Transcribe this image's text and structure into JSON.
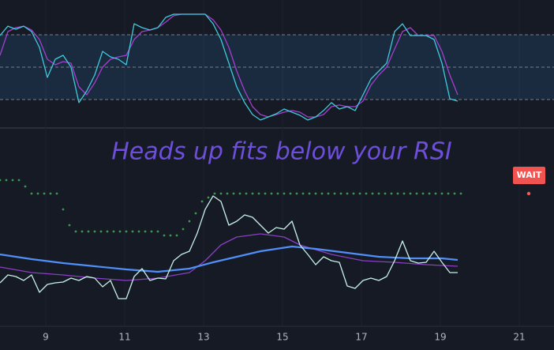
{
  "chart_data": [
    {
      "type": "line",
      "xlim": [
        7.84,
        21.88
      ],
      "ylim": [
        -4.9,
        112.2
      ],
      "hlines": [
        80,
        50,
        20
      ],
      "band": true,
      "series": [
        {
          "style": "line",
          "color": "#a53fcf",
          "x": [
            7.84,
            8.04,
            8.24,
            8.44,
            8.64,
            8.84,
            9.04,
            9.24,
            9.44,
            9.64,
            9.84,
            10.04,
            10.24,
            10.44,
            10.64,
            10.84,
            11.04,
            11.24,
            11.44,
            11.64,
            11.84,
            12.04,
            12.24,
            12.44,
            12.64,
            12.84,
            13.04,
            13.24,
            13.44,
            13.64,
            13.84,
            14.04,
            14.24,
            14.44,
            14.64,
            14.84,
            15.04,
            15.24,
            15.44,
            15.64,
            15.84,
            16.04,
            16.24,
            16.44,
            16.64,
            16.84,
            17.04,
            17.24,
            17.44,
            17.64,
            17.84,
            18.04,
            18.24,
            18.44,
            18.64,
            18.84,
            19.04,
            19.24,
            19.44
          ],
          "values": [
            61,
            82.9,
            86.6,
            88,
            84.4,
            75.6,
            57.3,
            52.2,
            55.1,
            53.7,
            31.7,
            24.4,
            35.4,
            50,
            57.3,
            59.5,
            61,
            75.6,
            82.9,
            84.4,
            86.6,
            91.7,
            97.6,
            99,
            99,
            99,
            99,
            93.9,
            84.4,
            68.3,
            46.3,
            28,
            13.4,
            6.1,
            3.9,
            6.1,
            8.3,
            9.8,
            8.3,
            3.9,
            3.9,
            6.1,
            13.4,
            14.9,
            13.4,
            13.4,
            18.5,
            33.2,
            42.7,
            50,
            66.8,
            82.9,
            86.6,
            79.3,
            79.3,
            79.3,
            64.6,
            42.7,
            24.4
          ]
        },
        {
          "style": "line",
          "color": "#3fcbdc",
          "x": [
            7.84,
            8.04,
            8.24,
            8.44,
            8.64,
            8.84,
            9.04,
            9.24,
            9.44,
            9.64,
            9.84,
            10.04,
            10.24,
            10.44,
            10.64,
            10.84,
            11.04,
            11.24,
            11.44,
            11.64,
            11.84,
            12.04,
            12.24,
            12.44,
            12.64,
            12.84,
            13.04,
            13.24,
            13.44,
            13.64,
            13.84,
            14.04,
            14.24,
            14.44,
            14.64,
            14.84,
            15.04,
            15.24,
            15.44,
            15.64,
            15.84,
            16.04,
            16.24,
            16.44,
            16.64,
            16.84,
            17.04,
            17.24,
            17.44,
            17.64,
            17.84,
            18.04,
            18.24,
            18.44,
            18.64,
            18.84,
            19.04,
            19.24,
            19.44
          ],
          "values": [
            79.3,
            88,
            85.1,
            88,
            82.9,
            68.3,
            40.5,
            57.3,
            61,
            50,
            17.1,
            28,
            42.7,
            64.6,
            59.5,
            57.3,
            52.2,
            90.2,
            86.6,
            84.4,
            86.6,
            96.1,
            99,
            99,
            99,
            99,
            99,
            90.2,
            75.6,
            53.7,
            31.7,
            17.1,
            6.1,
            1,
            3.9,
            6.8,
            11.2,
            8.3,
            5.4,
            1,
            3.9,
            9.8,
            17.1,
            11.2,
            13.4,
            9.8,
            24.4,
            39,
            46.3,
            53.7,
            82.9,
            90.2,
            79.3,
            79.3,
            79.3,
            75.6,
            53.7,
            20.7,
            18.5
          ]
        }
      ]
    },
    {
      "type": "line",
      "title": "Heads up fits below your RSI",
      "annotation": "WAIT",
      "xlim": [
        7.84,
        21.88
      ],
      "ylim": [
        0,
        123.5
      ],
      "xticks": [
        9,
        11,
        13,
        15,
        17,
        19,
        21
      ],
      "series": [
        {
          "style": "dots",
          "color": "#3a9a4c",
          "x": [
            7.84,
            8,
            8.16,
            8.32,
            8.48,
            8.64,
            8.8,
            8.96,
            9.12,
            9.28,
            9.44,
            9.6,
            9.76,
            9.92,
            10.08,
            10.24,
            10.4,
            10.56,
            10.72,
            10.88,
            11.04,
            11.2,
            11.36,
            11.52,
            11.68,
            11.84,
            12,
            12.16,
            12.32,
            12.48,
            12.64,
            12.8,
            12.96,
            13.12,
            13.28,
            13.44,
            13.6,
            13.76,
            13.92,
            14.08,
            14.24,
            14.4,
            14.56,
            14.72,
            14.88,
            15.04,
            15.2,
            15.36,
            15.52,
            15.68,
            15.84,
            16,
            16.16,
            16.32,
            16.48,
            16.64,
            16.8,
            16.96,
            17.12,
            17.28,
            17.44,
            17.6,
            17.76,
            17.92,
            18.08,
            18.24,
            18.4,
            18.56,
            18.72,
            18.88,
            19.04,
            19.2,
            19.36,
            19.52
          ],
          "values": [
            92,
            92,
            92,
            92,
            88,
            83.5,
            83.5,
            83.5,
            83.5,
            83.5,
            73.5,
            63.5,
            59.5,
            59.5,
            59.5,
            59.5,
            59.5,
            59.5,
            59.5,
            59.5,
            59.5,
            59.5,
            59.5,
            59.5,
            59.5,
            59.5,
            57,
            57,
            57,
            61,
            66,
            71,
            78.5,
            81,
            83.5,
            83.5,
            83.5,
            83.5,
            83.5,
            83.5,
            83.5,
            83.5,
            83.5,
            83.5,
            83.5,
            83.5,
            83.5,
            83.5,
            83.5,
            83.5,
            83.5,
            83.5,
            83.5,
            83.5,
            83.5,
            83.5,
            83.5,
            83.5,
            83.5,
            83.5,
            83.5,
            83.5,
            83.5,
            83.5,
            83.5,
            83.5,
            83.5,
            83.5,
            83.5,
            83.5,
            83.5,
            83.5,
            83.5,
            83.5
          ]
        },
        {
          "style": "line",
          "color": "#8a3fc4",
          "x": [
            7.84,
            8.64,
            9.44,
            10.24,
            11.04,
            11.84,
            12.64,
            13.04,
            13.44,
            13.84,
            14.44,
            15.04,
            15.44,
            16.24,
            17.04,
            17.84,
            18.64,
            19.44
          ],
          "values": [
            37,
            33.5,
            32,
            30,
            28.5,
            30,
            33.5,
            41,
            51,
            56,
            58,
            56,
            51,
            45,
            41,
            40,
            38.5,
            37.5
          ]
        },
        {
          "style": "bold-line",
          "color": "#4f8ff7",
          "x": [
            7.84,
            8.64,
            9.44,
            10.24,
            11.04,
            11.84,
            12.64,
            13.24,
            13.84,
            14.44,
            15.24,
            15.84,
            16.64,
            17.44,
            18.24,
            19.04,
            19.44
          ],
          "values": [
            45,
            42,
            39.5,
            37.5,
            35.5,
            34,
            36,
            40,
            43.5,
            47,
            50,
            48.5,
            46,
            43.5,
            42.5,
            42.5,
            41.5
          ]
        },
        {
          "style": "line",
          "color": "#c6f1ea",
          "x": [
            7.84,
            8.04,
            8.24,
            8.44,
            8.64,
            8.84,
            9.04,
            9.24,
            9.44,
            9.64,
            9.84,
            10.04,
            10.24,
            10.44,
            10.64,
            10.84,
            11.04,
            11.24,
            11.44,
            11.64,
            11.84,
            12.04,
            12.24,
            12.44,
            12.64,
            12.84,
            13.04,
            13.24,
            13.44,
            13.64,
            13.84,
            14.04,
            14.24,
            14.44,
            14.64,
            14.84,
            15.04,
            15.24,
            15.44,
            15.64,
            15.84,
            16.04,
            16.24,
            16.44,
            16.64,
            16.84,
            17.04,
            17.24,
            17.44,
            17.64,
            17.84,
            18.04,
            18.24,
            18.44,
            18.64,
            18.84,
            19.04,
            19.24,
            19.44
          ],
          "values": [
            27,
            32,
            31,
            28.5,
            32,
            21,
            26,
            27,
            27.5,
            30,
            28.5,
            31,
            30,
            24.5,
            28.5,
            17,
            17,
            31,
            36,
            28.5,
            30,
            29.5,
            41,
            45,
            47,
            58.5,
            73.5,
            82,
            78.5,
            63.5,
            66,
            70,
            68.5,
            63.5,
            58.5,
            62,
            61,
            66,
            51,
            45,
            38.5,
            43.5,
            41,
            40,
            25,
            23.5,
            28.5,
            30,
            28.5,
            31,
            41,
            53.5,
            41,
            39.5,
            40,
            47,
            40,
            33.5,
            33.5
          ]
        },
        {
          "style": "dots",
          "color": "#f25a5a",
          "x": [
            21.24
          ],
          "values": [
            83.5
          ]
        }
      ]
    }
  ]
}
